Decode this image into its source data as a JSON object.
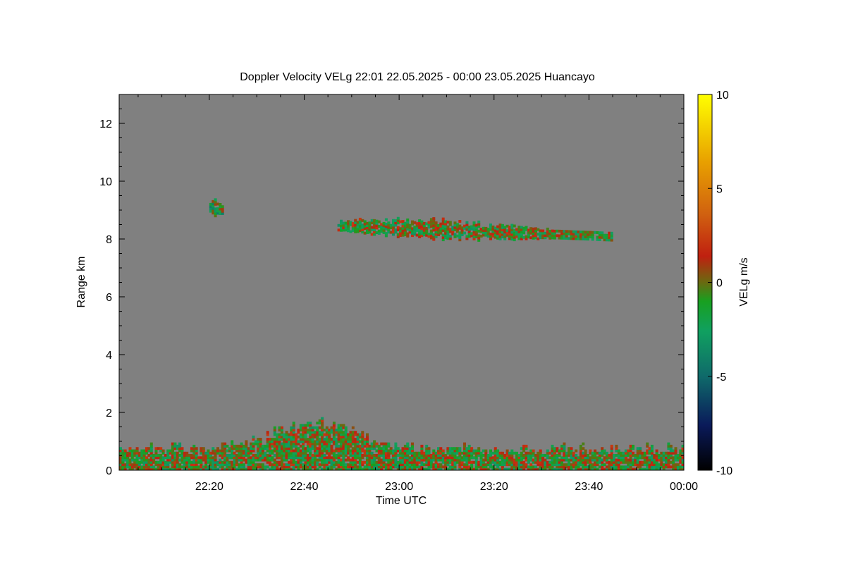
{
  "chart_data": {
    "type": "heatmap",
    "title": "Doppler Velocity VELg   22:01 22.05.2025 - 00:00 23.05.2025 Huancayo",
    "xlabel": "Time UTC",
    "ylabel": "Range km",
    "colorbar_label": "VELg m/s",
    "x_range_minutes": [
      -119,
      0
    ],
    "x_ticks": [
      {
        "value": -100,
        "label": "22:20"
      },
      {
        "value": -80,
        "label": "22:40"
      },
      {
        "value": -60,
        "label": "23:00"
      },
      {
        "value": -40,
        "label": "23:20"
      },
      {
        "value": -20,
        "label": "23:40"
      },
      {
        "value": 0,
        "label": "00:00"
      }
    ],
    "ylim": [
      0,
      13
    ],
    "y_ticks": [
      0,
      2,
      4,
      6,
      8,
      10,
      12
    ],
    "colorbar_range": [
      -10,
      10
    ],
    "colorbar_ticks": [
      10,
      5,
      0,
      -5,
      -10
    ],
    "background_color": "#808080",
    "colormap": [
      "#000000",
      "#0a1a5a",
      "#0f6a6a",
      "#10a060",
      "#18a020",
      "#6a6a10",
      "#c02010",
      "#d06010",
      "#e8a000",
      "#ffff00"
    ],
    "regions": [
      {
        "name": "boundary layer",
        "t_start": -119,
        "t_end": 0,
        "range_bottom": 0.0,
        "range_top": 1.5,
        "mean_velocity": -0.5
      },
      {
        "name": "cloud layer",
        "t_start": -73,
        "t_end": -15,
        "range_bottom": 7.6,
        "range_top": 9.1,
        "mean_velocity": -0.5
      },
      {
        "name": "isolated echo",
        "t_start": -100,
        "t_end": -97,
        "range_bottom": 8.8,
        "range_top": 9.3,
        "mean_velocity": -1.5
      }
    ]
  }
}
